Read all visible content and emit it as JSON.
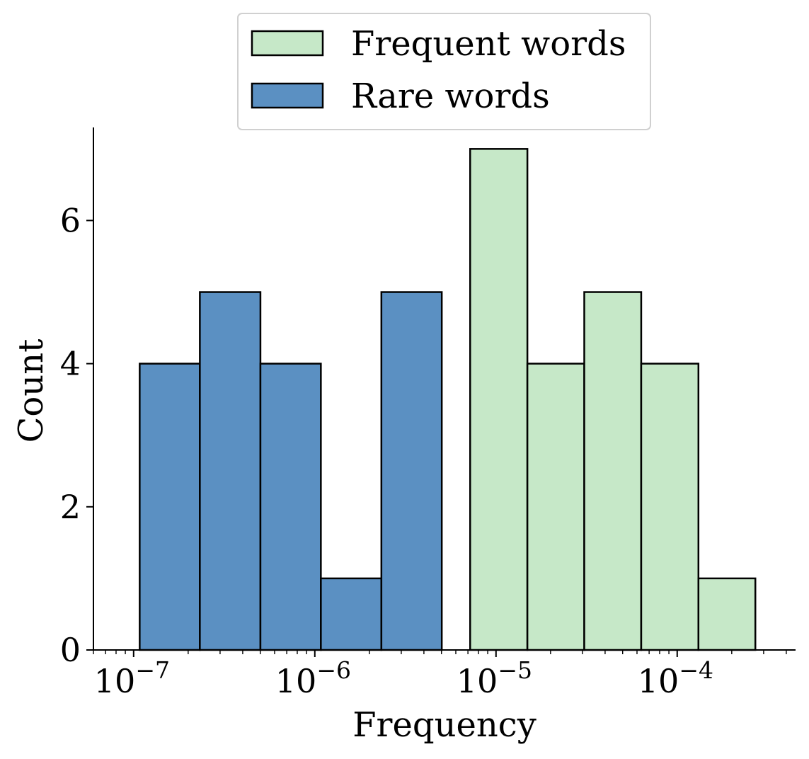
{
  "chart_data": {
    "type": "bar",
    "xlabel": "Frequency",
    "ylabel": "Count",
    "x_scale": "log",
    "xlim": [
      6e-08,
      0.00045
    ],
    "ylim": [
      0,
      7.3
    ],
    "y_ticks": [
      {
        "value": 0,
        "label": "0"
      },
      {
        "value": 2,
        "label": "2"
      },
      {
        "value": 4,
        "label": "4"
      },
      {
        "value": 6,
        "label": "6"
      }
    ],
    "x_ticks": [
      {
        "value": 1e-07,
        "base": "10",
        "exp": "−7"
      },
      {
        "value": 1e-06,
        "base": "10",
        "exp": "−6"
      },
      {
        "value": 1e-05,
        "base": "10",
        "exp": "−5"
      },
      {
        "value": 0.0001,
        "base": "10",
        "exp": "−4"
      }
    ],
    "grid": false,
    "legend_position": "top-center",
    "series": [
      {
        "name": "Frequent words",
        "color": "#c6e8c8",
        "edge_color": "#000000",
        "bins": [
          {
            "x_start": 7.2e-06,
            "x_end": 1.49e-05,
            "count": 7
          },
          {
            "x_start": 1.49e-05,
            "x_end": 3.07e-05,
            "count": 4
          },
          {
            "x_start": 3.07e-05,
            "x_end": 6.33e-05,
            "count": 5
          },
          {
            "x_start": 6.33e-05,
            "x_end": 0.000131,
            "count": 4
          },
          {
            "x_start": 0.000131,
            "x_end": 0.00027,
            "count": 1
          }
        ]
      },
      {
        "name": "Rare words",
        "color": "#5b90c2",
        "edge_color": "#000000",
        "bins": [
          {
            "x_start": 1.08e-07,
            "x_end": 2.32e-07,
            "count": 4
          },
          {
            "x_start": 2.32e-07,
            "x_end": 5.01e-07,
            "count": 5
          },
          {
            "x_start": 5.01e-07,
            "x_end": 1.08e-06,
            "count": 4
          },
          {
            "x_start": 1.08e-06,
            "x_end": 2.33e-06,
            "count": 1
          },
          {
            "x_start": 2.33e-06,
            "x_end": 5.02e-06,
            "count": 5
          }
        ]
      }
    ]
  }
}
